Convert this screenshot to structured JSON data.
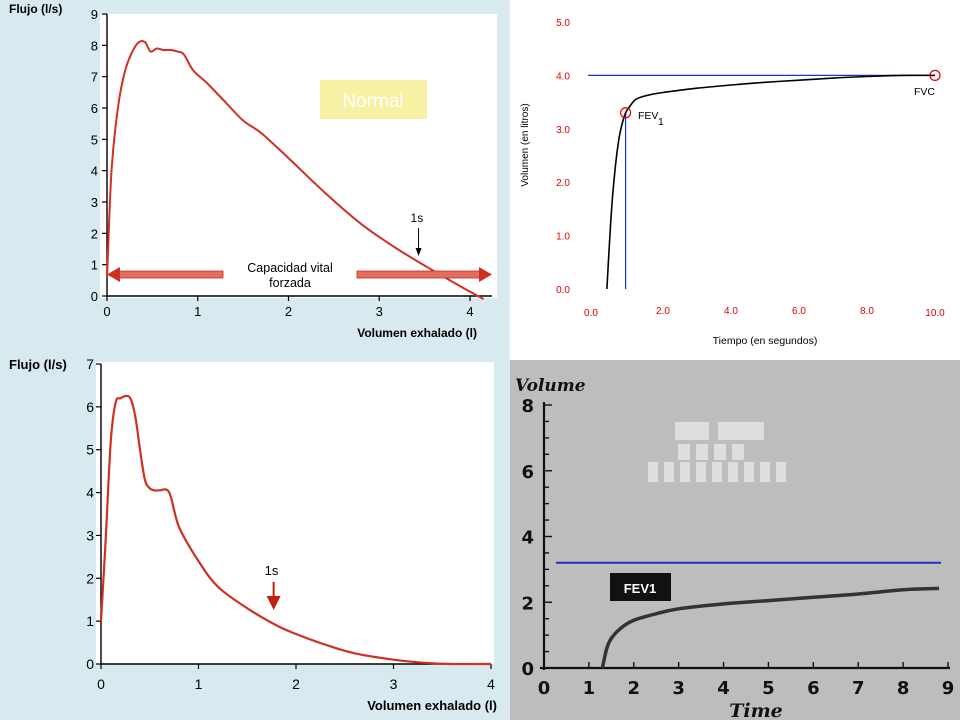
{
  "chart_data": [
    {
      "type": "line",
      "panel": "top-left",
      "ylabel": "Flujo (l/s)",
      "xlabel": "Volumen exhalado (l)",
      "xlim": [
        0,
        4
      ],
      "ylim": [
        0,
        9
      ],
      "x_ticks": [
        "0",
        "1",
        "2",
        "3",
        "4"
      ],
      "y_ticks": [
        "0",
        "1",
        "2",
        "3",
        "4",
        "5",
        "6",
        "7",
        "8",
        "9"
      ],
      "series": [
        {
          "color": "#d03020",
          "x": [
            0,
            0.05,
            0.12,
            0.2,
            0.28,
            0.35,
            0.42,
            0.48,
            0.55,
            0.62,
            0.7,
            0.78,
            0.85,
            0.95,
            1.1,
            1.3,
            1.5,
            1.7,
            2.0,
            2.4,
            2.8,
            3.2,
            3.6,
            3.9,
            4.15
          ],
          "y": [
            0.6,
            4.0,
            6.0,
            7.2,
            7.8,
            8.1,
            8.1,
            7.8,
            7.9,
            7.85,
            7.85,
            7.8,
            7.7,
            7.2,
            6.8,
            6.2,
            5.6,
            5.2,
            4.4,
            3.3,
            2.3,
            1.5,
            0.8,
            0.3,
            -0.1
          ]
        }
      ],
      "annotations": [
        "Normal",
        "1s",
        "Capacidad vital",
        "forzada"
      ],
      "annotation_1s_x": 3.4
    },
    {
      "type": "line",
      "panel": "top-right",
      "ylabel": "Volumen (en litros)",
      "xlabel": "Tiempo (en segundos)",
      "xlim": [
        0,
        10
      ],
      "ylim": [
        0,
        5
      ],
      "x_ticks": [
        "0.0",
        "2.0",
        "4.0",
        "6.0",
        "8.0",
        "10.0"
      ],
      "y_ticks": [
        "0.0",
        "1.0",
        "2.0",
        "3.0",
        "4.0",
        "5.0"
      ],
      "series": [
        {
          "color": "#000000",
          "x": [
            0.35,
            0.42,
            0.5,
            0.6,
            0.7,
            0.8,
            0.9,
            1.0,
            1.2,
            1.5,
            2.0,
            3.0,
            4.0,
            5.0,
            6.0,
            7.0,
            8.0,
            9.0,
            10.0
          ],
          "y": [
            0.0,
            0.8,
            1.6,
            2.3,
            2.8,
            3.1,
            3.3,
            3.4,
            3.55,
            3.62,
            3.68,
            3.76,
            3.82,
            3.87,
            3.91,
            3.95,
            3.98,
            4.0,
            4.0
          ]
        }
      ],
      "fev1": {
        "x": 0.9,
        "y": 3.3
      },
      "fvc": {
        "x": 10.0,
        "y": 4.0
      },
      "annotations": [
        "FEV",
        "1",
        "FVC"
      ]
    },
    {
      "type": "line",
      "panel": "bottom-left",
      "ylabel": "Flujo (l/s)",
      "xlabel": "Volumen exhalado (l)",
      "xlim": [
        0,
        4
      ],
      "ylim": [
        0,
        7
      ],
      "x_ticks": [
        "0",
        "1",
        "2",
        "3",
        "4"
      ],
      "y_ticks": [
        "0",
        "1",
        "2",
        "3",
        "4",
        "5",
        "6",
        "7"
      ],
      "series": [
        {
          "color": "#d03020",
          "x": [
            0,
            0.05,
            0.1,
            0.15,
            0.2,
            0.25,
            0.3,
            0.35,
            0.4,
            0.45,
            0.5,
            0.55,
            0.6,
            0.7,
            0.8,
            1.0,
            1.2,
            1.5,
            1.8,
            2.0,
            2.3,
            2.6,
            3.0,
            3.3,
            3.6,
            4.0
          ],
          "y": [
            1.0,
            3.0,
            5.2,
            6.1,
            6.2,
            6.25,
            6.2,
            5.8,
            5.0,
            4.3,
            4.1,
            4.05,
            4.05,
            4.0,
            3.2,
            2.4,
            1.8,
            1.3,
            0.9,
            0.7,
            0.45,
            0.25,
            0.1,
            0.03,
            0.0,
            0.0
          ]
        }
      ],
      "annotations": [
        "1s"
      ],
      "annotation_1s_x": 1.75
    },
    {
      "type": "line",
      "panel": "bottom-right",
      "ylabel": "Volume",
      "xlabel": "Time",
      "xlim": [
        0,
        9
      ],
      "ylim": [
        0,
        8
      ],
      "x_ticks": [
        "0",
        "1",
        "2",
        "3",
        "4",
        "5",
        "6",
        "7",
        "8",
        "9"
      ],
      "y_ticks": [
        "0",
        "2",
        "4",
        "6",
        "8"
      ],
      "series": [
        {
          "color": "#222222",
          "x": [
            1.3,
            1.4,
            1.5,
            1.7,
            2.0,
            2.5,
            3.0,
            4.0,
            5.0,
            6.0,
            7.0,
            8.0,
            8.8
          ],
          "y": [
            0.0,
            0.6,
            0.9,
            1.2,
            1.45,
            1.65,
            1.8,
            1.95,
            2.05,
            2.15,
            2.25,
            2.38,
            2.42
          ]
        }
      ],
      "reference_line_y": 3.2,
      "annotations": [
        "FEV1"
      ]
    }
  ],
  "colors": {
    "panel_blue": "#d9e9f0",
    "red_curve": "#d03020",
    "blue_line": "#2030c0",
    "red_label": "#e00000"
  }
}
